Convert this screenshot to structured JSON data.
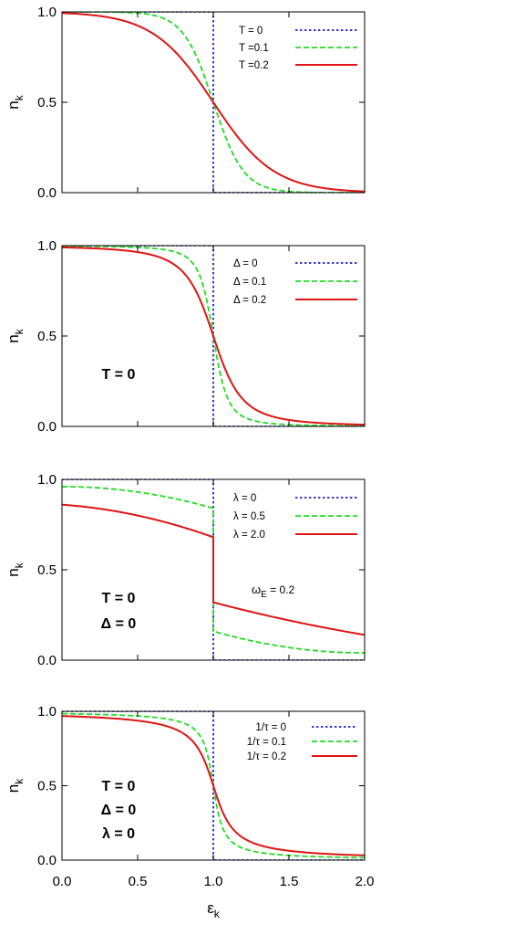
{
  "chart_data": [
    {
      "type": "line",
      "ylabel": "n",
      "ylabel_sub": "k",
      "xlim": [
        0,
        2
      ],
      "ylim": [
        0,
        1
      ],
      "xticks": [
        "0.0",
        "0.5",
        "1.0",
        "1.5",
        "2.0"
      ],
      "yticks": [
        "0.0",
        "0.5",
        "1.0"
      ],
      "show_xticklabels": false,
      "legend_position": "top-right",
      "annotations": [],
      "series": [
        {
          "name": "T =  0",
          "style": "dotted",
          "color": "#1a1ad8",
          "model": "step",
          "x": [
            0,
            1,
            1,
            2
          ],
          "y": [
            1,
            1,
            0,
            0
          ]
        },
        {
          "name": "T =0.1",
          "style": "dashed",
          "color": "#22dd22",
          "model": "fermi",
          "params": {
            "mu": 1.0,
            "T": 0.1
          },
          "x": [
            0,
            0.5,
            0.8,
            1.0,
            1.2,
            1.5,
            2.0
          ],
          "y": [
            1.0,
            0.993,
            0.88,
            0.5,
            0.12,
            0.007,
            0.0
          ]
        },
        {
          "name": "T =0.2",
          "style": "solid",
          "color": "#e01414",
          "model": "fermi",
          "params": {
            "mu": 1.0,
            "T": 0.2
          },
          "x": [
            0,
            0.5,
            0.8,
            1.0,
            1.2,
            1.5,
            2.0
          ],
          "y": [
            0.993,
            0.92,
            0.73,
            0.5,
            0.27,
            0.08,
            0.007
          ]
        }
      ]
    },
    {
      "type": "line",
      "ylabel": "n",
      "ylabel_sub": "k",
      "xlim": [
        0,
        2
      ],
      "ylim": [
        0,
        1
      ],
      "xticks": [
        "0.0",
        "0.5",
        "1.0",
        "1.5",
        "2.0"
      ],
      "yticks": [
        "0.0",
        "0.5",
        "1.0"
      ],
      "show_xticklabels": false,
      "legend_position": "top-right",
      "annotations": [
        "T = 0"
      ],
      "series": [
        {
          "name": "Δ =  0",
          "style": "dotted",
          "color": "#1a1ad8",
          "model": "step",
          "x": [
            0,
            1,
            1,
            2
          ],
          "y": [
            1,
            1,
            0,
            0
          ]
        },
        {
          "name": "Δ = 0.1",
          "style": "dashed",
          "color": "#22dd22",
          "model": "bcs",
          "params": {
            "mu": 1.0,
            "D": 0.1
          },
          "x": [
            0,
            0.5,
            0.9,
            1.0,
            1.1,
            1.5,
            2.0
          ],
          "y": [
            0.999,
            0.99,
            0.85,
            0.5,
            0.15,
            0.01,
            0.001
          ]
        },
        {
          "name": "Δ = 0.2",
          "style": "solid",
          "color": "#e01414",
          "model": "bcs",
          "params": {
            "mu": 1.0,
            "D": 0.2
          },
          "x": [
            0,
            0.5,
            0.9,
            1.0,
            1.1,
            1.5,
            2.0
          ],
          "y": [
            0.99,
            0.96,
            0.72,
            0.5,
            0.28,
            0.04,
            0.01
          ]
        }
      ]
    },
    {
      "type": "line",
      "ylabel": "n",
      "ylabel_sub": "k",
      "xlim": [
        0,
        2
      ],
      "ylim": [
        0,
        1
      ],
      "xticks": [
        "0.0",
        "0.5",
        "1.0",
        "1.5",
        "2.0"
      ],
      "yticks": [
        "0.0",
        "0.5",
        "1.0"
      ],
      "show_xticklabels": false,
      "legend_position": "top-right",
      "annotations": [
        "T = 0",
        "Δ = 0"
      ],
      "side_note": {
        "text": "ω",
        "sub": "E",
        "value": " =  0.2"
      },
      "series": [
        {
          "name": "λ =  0",
          "style": "dotted",
          "color": "#1a1ad8",
          "model": "step",
          "x": [
            0,
            1,
            1,
            2
          ],
          "y": [
            1,
            1,
            0,
            0
          ]
        },
        {
          "name": "λ = 0.5",
          "style": "dashed",
          "color": "#22dd22",
          "model": "polaron",
          "x": [
            0,
            0.5,
            1.0,
            1.0,
            1.5,
            2.0
          ],
          "y": [
            0.96,
            0.93,
            0.84,
            0.16,
            0.07,
            0.04
          ]
        },
        {
          "name": "λ = 2.0",
          "style": "solid",
          "color": "#e01414",
          "model": "polaron",
          "x": [
            0,
            0.5,
            1.0,
            1.0,
            1.5,
            2.0
          ],
          "y": [
            0.86,
            0.8,
            0.68,
            0.32,
            0.22,
            0.14
          ]
        }
      ]
    },
    {
      "type": "line",
      "ylabel": "n",
      "ylabel_sub": "k",
      "xlabel": "ε",
      "xlabel_sub": "k",
      "xlim": [
        0,
        2
      ],
      "ylim": [
        0,
        1
      ],
      "xticks": [
        "0.0",
        "0.5",
        "1.0",
        "1.5",
        "2.0"
      ],
      "yticks": [
        "0.0",
        "0.5",
        "1.0"
      ],
      "show_xticklabels": true,
      "legend_position": "top-right",
      "annotations": [
        "T = 0",
        "Δ = 0",
        "λ = 0"
      ],
      "series": [
        {
          "name": "1/τ =  0",
          "style": "dotted",
          "color": "#1a1ad8",
          "model": "step",
          "x": [
            0,
            1,
            1,
            2
          ],
          "y": [
            1,
            1,
            0,
            0
          ]
        },
        {
          "name": "1/τ = 0.1",
          "style": "dashed",
          "color": "#22dd22",
          "model": "lorentz",
          "params": {
            "mu": 1.0,
            "G": 0.05
          },
          "x": [
            0,
            0.5,
            0.9,
            1.0,
            1.1,
            1.5,
            2.0
          ],
          "y": [
            0.984,
            0.968,
            0.85,
            0.5,
            0.15,
            0.032,
            0.016
          ]
        },
        {
          "name": "1/τ = 0.2",
          "style": "solid",
          "color": "#e01414",
          "model": "lorentz",
          "params": {
            "mu": 1.0,
            "G": 0.1
          },
          "x": [
            0,
            0.5,
            0.9,
            1.0,
            1.1,
            1.5,
            2.0
          ],
          "y": [
            0.968,
            0.937,
            0.75,
            0.5,
            0.25,
            0.063,
            0.032
          ]
        }
      ]
    }
  ]
}
